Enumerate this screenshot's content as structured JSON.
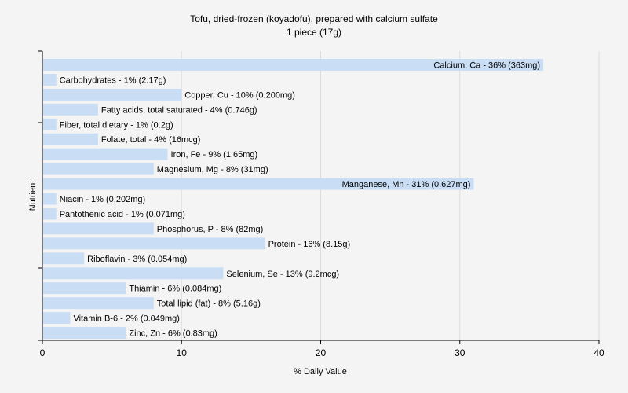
{
  "chart_data": {
    "type": "bar",
    "orientation": "horizontal",
    "title": "Tofu, dried-frozen (koyadofu), prepared with calcium sulfate",
    "subtitle": "1 piece (17g)",
    "xlabel": "% Daily Value",
    "ylabel": "Nutrient",
    "xlim": [
      0,
      40
    ],
    "xticks": [
      0,
      10,
      20,
      30,
      40
    ],
    "grid": true,
    "bar_color": "#c9def5",
    "grid_color": "#dcdcdc",
    "categories": [
      "Calcium, Ca",
      "Carbohydrates",
      "Copper, Cu",
      "Fatty acids, total saturated",
      "Fiber, total dietary",
      "Folate, total",
      "Iron, Fe",
      "Magnesium, Mg",
      "Manganese, Mn",
      "Niacin",
      "Pantothenic acid",
      "Phosphorus, P",
      "Protein",
      "Riboflavin",
      "Selenium, Se",
      "Thiamin",
      "Total lipid (fat)",
      "Vitamin B-6",
      "Zinc, Zn"
    ],
    "values": [
      36,
      1,
      10,
      4,
      1,
      4,
      9,
      8,
      31,
      1,
      1,
      8,
      16,
      3,
      13,
      6,
      8,
      2,
      6
    ],
    "labels": [
      "Calcium, Ca - 36% (363mg)",
      "Carbohydrates - 1% (2.17g)",
      "Copper, Cu - 10% (0.200mg)",
      "Fatty acids, total saturated - 4% (0.746g)",
      "Fiber, total dietary - 1% (0.2g)",
      "Folate, total - 4% (16mcg)",
      "Iron, Fe - 9% (1.65mg)",
      "Magnesium, Mg - 8% (31mg)",
      "Manganese, Mn - 31% (0.627mg)",
      "Niacin - 1% (0.202mg)",
      "Pantothenic acid - 1% (0.071mg)",
      "Phosphorus, P - 8% (82mg)",
      "Protein - 16% (8.15g)",
      "Riboflavin - 3% (0.054mg)",
      "Selenium, Se - 13% (9.2mcg)",
      "Thiamin - 6% (0.084mg)",
      "Total lipid (fat) - 8% (5.16g)",
      "Vitamin B-6 - 2% (0.049mg)",
      "Zinc, Zn - 6% (0.83mg)"
    ]
  }
}
